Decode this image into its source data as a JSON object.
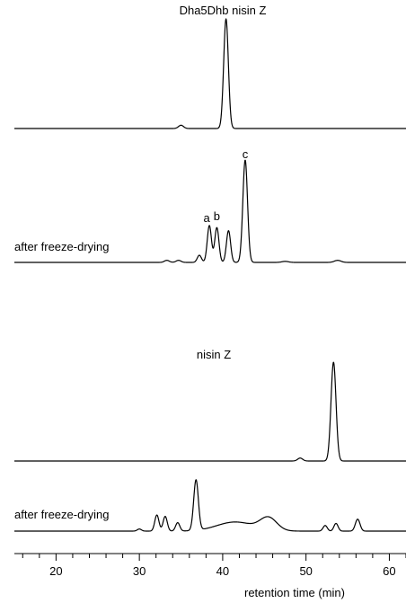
{
  "chart_data": {
    "type": "line",
    "xlabel": "retention time (min)",
    "xlim": [
      15,
      62
    ],
    "x_ticks": [
      "20",
      "30",
      "40",
      "50",
      "60"
    ],
    "x_tick_values": [
      20,
      30,
      40,
      50,
      60
    ],
    "minor_tick_step": 2,
    "grid": false,
    "panels": [
      {
        "title": "Dha5Dhb nisin Z",
        "series": [
          {
            "name": "",
            "peaks": [
              {
                "x": 35.0,
                "height": 0.03,
                "width": 0.3
              },
              {
                "x": 40.4,
                "height": 1.0,
                "width": 0.28
              }
            ]
          },
          {
            "name": "after freeze-drying",
            "peaks": [
              {
                "x": 33.3,
                "height": 0.02,
                "width": 0.3
              },
              {
                "x": 34.7,
                "height": 0.02,
                "width": 0.3
              },
              {
                "x": 37.2,
                "height": 0.07,
                "width": 0.25
              },
              {
                "x": 38.4,
                "height": 0.36,
                "width": 0.25
              },
              {
                "x": 39.3,
                "height": 0.34,
                "width": 0.25
              },
              {
                "x": 40.7,
                "height": 0.31,
                "width": 0.25
              },
              {
                "x": 42.7,
                "height": 1.0,
                "width": 0.28
              },
              {
                "x": 47.5,
                "height": 0.01,
                "width": 0.4
              },
              {
                "x": 53.8,
                "height": 0.02,
                "width": 0.4
              }
            ],
            "peak_labels": [
              {
                "text": "a",
                "x": 38.4
              },
              {
                "text": "b",
                "x": 39.3
              },
              {
                "text": "c",
                "x": 42.7
              }
            ]
          }
        ]
      },
      {
        "title": "nisin Z",
        "series": [
          {
            "name": "",
            "peaks": [
              {
                "x": 49.3,
                "height": 0.03,
                "width": 0.3
              },
              {
                "x": 53.3,
                "height": 1.0,
                "width": 0.3
              }
            ]
          },
          {
            "name": "after freeze-drying",
            "peaks": [
              {
                "x": 30.0,
                "height": 0.03,
                "width": 0.25
              },
              {
                "x": 32.1,
                "height": 0.23,
                "width": 0.25
              },
              {
                "x": 33.1,
                "height": 0.21,
                "width": 0.25
              },
              {
                "x": 34.6,
                "height": 0.12,
                "width": 0.25
              },
              {
                "x": 36.8,
                "height": 0.72,
                "width": 0.28
              },
              {
                "x": 41.5,
                "height": 0.13,
                "width": 2.2
              },
              {
                "x": 45.5,
                "height": 0.18,
                "width": 1.0
              },
              {
                "x": 52.3,
                "height": 0.08,
                "width": 0.25
              },
              {
                "x": 53.6,
                "height": 0.11,
                "width": 0.25
              },
              {
                "x": 56.2,
                "height": 0.17,
                "width": 0.28
              }
            ]
          }
        ]
      }
    ]
  }
}
